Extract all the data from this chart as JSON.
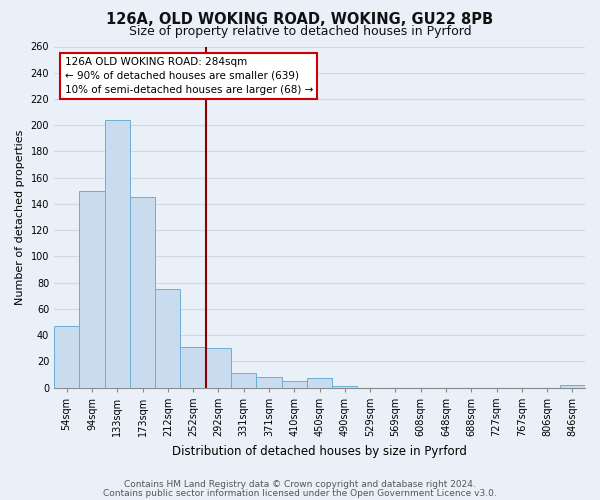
{
  "title": "126A, OLD WOKING ROAD, WOKING, GU22 8PB",
  "subtitle": "Size of property relative to detached houses in Pyrford",
  "xlabel": "Distribution of detached houses by size in Pyrford",
  "ylabel": "Number of detached properties",
  "bar_color": "#c9dcef",
  "bar_edge_color": "#6baed6",
  "background_color": "#eaf0f8",
  "grid_color": "#d0d8e8",
  "bins": [
    "54sqm",
    "94sqm",
    "133sqm",
    "173sqm",
    "212sqm",
    "252sqm",
    "292sqm",
    "331sqm",
    "371sqm",
    "410sqm",
    "450sqm",
    "490sqm",
    "529sqm",
    "569sqm",
    "608sqm",
    "648sqm",
    "688sqm",
    "727sqm",
    "767sqm",
    "806sqm",
    "846sqm"
  ],
  "values": [
    47,
    150,
    204,
    145,
    75,
    31,
    30,
    11,
    8,
    5,
    7,
    1,
    0,
    0,
    0,
    0,
    0,
    0,
    0,
    0,
    2
  ],
  "vline_bin_index": 6,
  "vline_color": "#8b0000",
  "annotation_title": "126A OLD WOKING ROAD: 284sqm",
  "annotation_line1": "← 90% of detached houses are smaller (639)",
  "annotation_line2": "10% of semi-detached houses are larger (68) →",
  "annotation_box_color": "white",
  "annotation_box_edge": "#cc0000",
  "ylim": [
    0,
    260
  ],
  "yticks": [
    0,
    20,
    40,
    60,
    80,
    100,
    120,
    140,
    160,
    180,
    200,
    220,
    240,
    260
  ],
  "footer1": "Contains HM Land Registry data © Crown copyright and database right 2024.",
  "footer2": "Contains public sector information licensed under the Open Government Licence v3.0.",
  "title_fontsize": 10.5,
  "subtitle_fontsize": 9,
  "tick_fontsize": 7,
  "ylabel_fontsize": 8,
  "xlabel_fontsize": 8.5,
  "footer_fontsize": 6.5,
  "annotation_fontsize": 7.5
}
